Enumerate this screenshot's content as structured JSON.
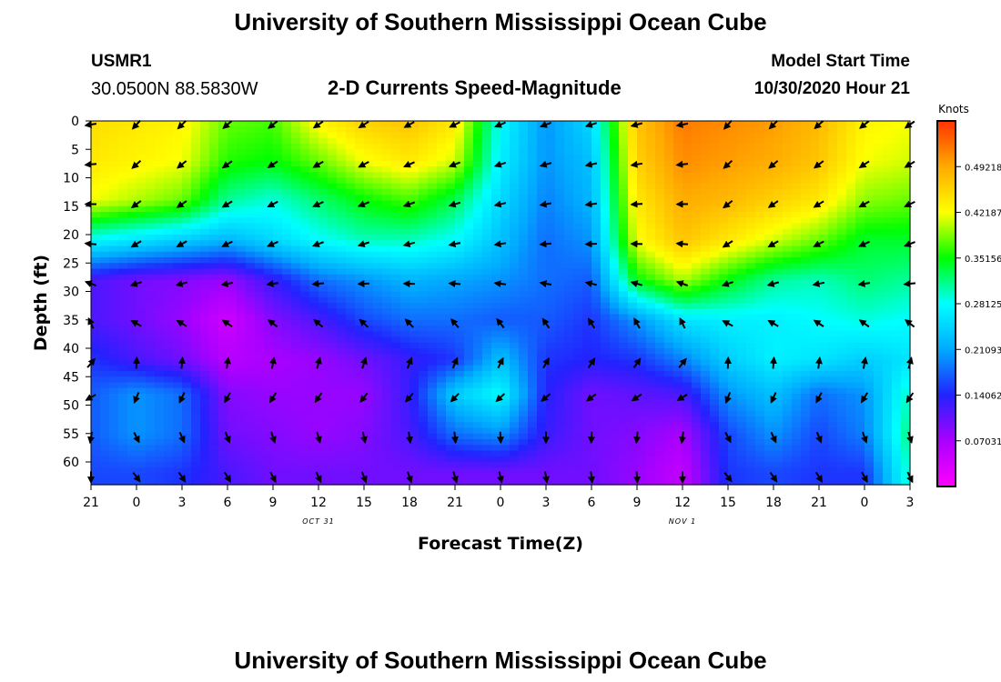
{
  "header": {
    "title": "University of Southern Mississippi Ocean Cube",
    "station_id": "USMR1",
    "station_coords": "30.0500N 88.5830W",
    "chart_title": "2-D Currents Speed-Magnitude",
    "model_label": "Model Start Time",
    "model_start": "10/30/2020 Hour 21"
  },
  "footer": {
    "title": "University of Southern Mississippi Ocean Cube"
  },
  "chart_data": {
    "type": "heatmap",
    "title": "2-D Currents Speed-Magnitude",
    "xlabel": "Forecast Time(Z)",
    "ylabel": "Depth (ft)",
    "x_ticks": [
      "21",
      "0",
      "3",
      "6",
      "9",
      "12",
      "15",
      "18",
      "21",
      "0",
      "3",
      "6",
      "9",
      "12",
      "15",
      "18",
      "21",
      "0",
      "3"
    ],
    "x_hours": [
      0,
      3,
      6,
      9,
      12,
      15,
      18,
      21,
      24,
      27,
      30,
      33,
      36,
      39,
      42,
      45,
      48,
      51,
      54
    ],
    "date_labels": [
      {
        "text": "OCT 31",
        "hour": 15
      },
      {
        "text": "NOV 1",
        "hour": 39
      }
    ],
    "y_ticks": [
      0,
      5,
      10,
      15,
      20,
      25,
      30,
      35,
      40,
      45,
      50,
      55,
      60
    ],
    "xlim": [
      0,
      54
    ],
    "ylim": [
      0,
      64
    ],
    "colorbar": {
      "unit": "Knots",
      "ticks": [
        "0.49218",
        "0.42187",
        "0.35156",
        "0.28125",
        "0.21093",
        "0.14062",
        "0.07031"
      ],
      "tick_values": [
        0.49218,
        0.42187,
        0.35156,
        0.28125,
        0.21093,
        0.14062,
        0.07031
      ],
      "range": [
        0,
        0.5625
      ],
      "colors": [
        "#ff00ff",
        "#aa00ff",
        "#2222ff",
        "#00aaff",
        "#00ffff",
        "#00ff00",
        "#ffff00",
        "#ffaa00",
        "#ff3300"
      ]
    },
    "depth_rows": [
      0,
      7,
      14,
      21,
      28,
      35,
      42,
      48,
      55,
      62
    ],
    "speed_grid": [
      [
        0.45,
        0.44,
        0.43,
        0.38,
        0.37,
        0.43,
        0.46,
        0.47,
        0.44,
        0.28,
        0.2,
        0.25,
        0.47,
        0.52,
        0.51,
        0.5,
        0.48,
        0.43,
        0.42
      ],
      [
        0.44,
        0.43,
        0.42,
        0.36,
        0.35,
        0.38,
        0.42,
        0.44,
        0.41,
        0.27,
        0.2,
        0.23,
        0.46,
        0.51,
        0.5,
        0.49,
        0.47,
        0.42,
        0.41
      ],
      [
        0.42,
        0.4,
        0.38,
        0.31,
        0.29,
        0.32,
        0.35,
        0.37,
        0.33,
        0.25,
        0.19,
        0.22,
        0.44,
        0.49,
        0.48,
        0.46,
        0.44,
        0.39,
        0.38
      ],
      [
        0.28,
        0.26,
        0.24,
        0.22,
        0.25,
        0.28,
        0.3,
        0.3,
        0.28,
        0.23,
        0.18,
        0.2,
        0.42,
        0.47,
        0.44,
        0.41,
        0.38,
        0.34,
        0.34
      ],
      [
        0.12,
        0.1,
        0.09,
        0.08,
        0.13,
        0.18,
        0.2,
        0.22,
        0.21,
        0.2,
        0.18,
        0.17,
        0.35,
        0.4,
        0.35,
        0.31,
        0.3,
        0.32,
        0.31
      ],
      [
        0.12,
        0.1,
        0.08,
        0.04,
        0.09,
        0.12,
        0.16,
        0.18,
        0.18,
        0.17,
        0.17,
        0.15,
        0.2,
        0.26,
        0.27,
        0.27,
        0.28,
        0.29,
        0.28
      ],
      [
        0.15,
        0.12,
        0.1,
        0.06,
        0.07,
        0.08,
        0.1,
        0.13,
        0.15,
        0.23,
        0.15,
        0.14,
        0.15,
        0.19,
        0.24,
        0.27,
        0.26,
        0.24,
        0.26
      ],
      [
        0.17,
        0.2,
        0.18,
        0.09,
        0.08,
        0.08,
        0.08,
        0.13,
        0.24,
        0.28,
        0.14,
        0.1,
        0.11,
        0.12,
        0.2,
        0.23,
        0.18,
        0.2,
        0.3
      ],
      [
        0.17,
        0.2,
        0.18,
        0.1,
        0.09,
        0.08,
        0.09,
        0.12,
        0.18,
        0.2,
        0.13,
        0.1,
        0.09,
        0.07,
        0.16,
        0.2,
        0.16,
        0.19,
        0.32
      ],
      [
        0.16,
        0.16,
        0.15,
        0.12,
        0.1,
        0.1,
        0.1,
        0.1,
        0.1,
        0.1,
        0.1,
        0.1,
        0.08,
        0.05,
        0.15,
        0.16,
        0.15,
        0.15,
        0.3
      ]
    ],
    "arrow_dir_row_angles_deg": [
      210,
      205,
      200,
      195,
      180,
      135,
      70,
      230,
      280,
      290
    ]
  }
}
